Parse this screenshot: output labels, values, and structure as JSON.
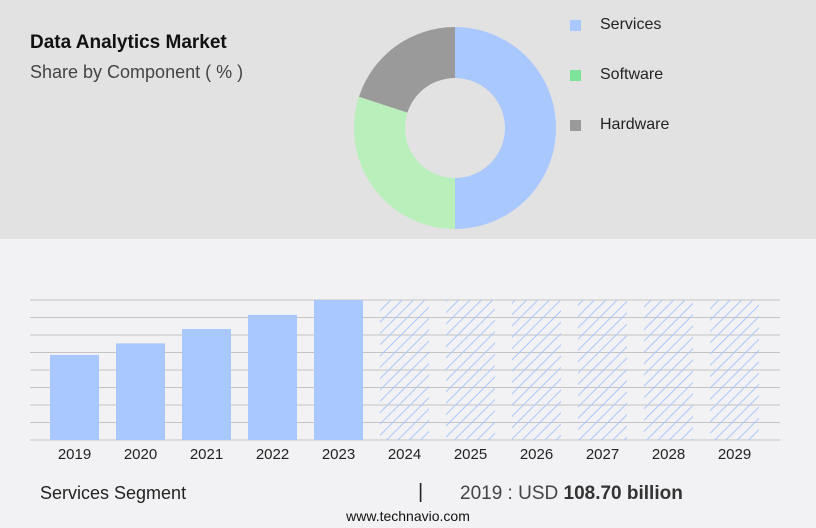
{
  "header": {
    "title": "Data Analytics Market",
    "subtitle": "Share by Component ( % )"
  },
  "legend": [
    {
      "label": "Services",
      "color": "#a8c8ff"
    },
    {
      "label": "Software",
      "color": "#7ee39a"
    },
    {
      "label": "Hardware",
      "color": "#9a9a9a"
    }
  ],
  "footer": {
    "segment": "Services Segment",
    "separator": "|",
    "year_prefix": "2019 : USD ",
    "value": "108.70 billion",
    "site": "www.technavio.com"
  },
  "chart_data": [
    {
      "type": "pie",
      "title": "Data Analytics Market - Share by Component ( % )",
      "categories": [
        "Services",
        "Software",
        "Hardware"
      ],
      "values": [
        50,
        30,
        20
      ],
      "colors": [
        "#a8c8ff",
        "#b8efbb",
        "#9a9a9a"
      ],
      "donut": true,
      "legend_position": "right"
    },
    {
      "type": "bar",
      "title": "Services Segment",
      "categories": [
        "2019",
        "2020",
        "2021",
        "2022",
        "2023",
        "2024",
        "2025",
        "2026",
        "2027",
        "2028",
        "2029"
      ],
      "values": [
        108.7,
        123.5,
        141.8,
        159.9,
        178.9,
        null,
        null,
        null,
        null,
        null,
        null
      ],
      "forecast_hatched": [
        "2024",
        "2025",
        "2026",
        "2027",
        "2028",
        "2029"
      ],
      "xlabel": "",
      "ylabel": "",
      "grid": true,
      "annotation": "2019 : USD 108.70 billion",
      "bar_color": "#a8c8ff"
    }
  ]
}
